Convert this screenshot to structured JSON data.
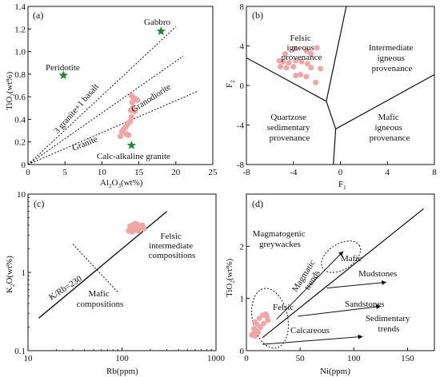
{
  "colors": {
    "point": "#f2a5a5",
    "star": "#1f8a3a",
    "ink": "#111111"
  },
  "chart_data": [
    {
      "panel": "(a)",
      "type": "scatter",
      "xlabel": "Al2O3 (wt%)",
      "ylabel": "TiO2 (wt%)",
      "xlim": [
        0,
        25
      ],
      "ylim": [
        0,
        1.4
      ],
      "xticks": [
        0,
        5,
        10,
        15,
        20,
        25
      ],
      "yticks": [
        0,
        0.2,
        0.4,
        0.6,
        0.8,
        1.0,
        1.2,
        1.4
      ],
      "reference_points": [
        {
          "label": "Peridotite",
          "x": 4.8,
          "y": 0.79
        },
        {
          "label": "Gabbro",
          "x": 18.0,
          "y": 1.18
        },
        {
          "label": "Calc-alkaline granite",
          "x": 14.0,
          "y": 0.17
        }
      ],
      "lines": [
        {
          "label": "3 granite+1 basalt",
          "x": [
            0,
            20
          ],
          "y": [
            0,
            1.22
          ]
        },
        {
          "label": "Granodiorite",
          "x": [
            0,
            21
          ],
          "y": [
            0,
            0.96
          ]
        },
        {
          "label": "Granite",
          "x": [
            0,
            23
          ],
          "y": [
            0,
            0.65
          ]
        }
      ],
      "points": [
        {
          "x": 14.0,
          "y": 0.61
        },
        {
          "x": 14.3,
          "y": 0.59
        },
        {
          "x": 14.6,
          "y": 0.58
        },
        {
          "x": 14.1,
          "y": 0.55
        },
        {
          "x": 14.8,
          "y": 0.57
        },
        {
          "x": 14.2,
          "y": 0.5
        },
        {
          "x": 13.9,
          "y": 0.48
        },
        {
          "x": 14.4,
          "y": 0.47
        },
        {
          "x": 14.0,
          "y": 0.42
        },
        {
          "x": 13.8,
          "y": 0.38
        },
        {
          "x": 13.5,
          "y": 0.36
        },
        {
          "x": 13.2,
          "y": 0.33
        },
        {
          "x": 12.9,
          "y": 0.31
        },
        {
          "x": 12.7,
          "y": 0.29
        },
        {
          "x": 13.3,
          "y": 0.27
        },
        {
          "x": 13.6,
          "y": 0.26
        },
        {
          "x": 12.5,
          "y": 0.25
        }
      ]
    },
    {
      "panel": "(b)",
      "type": "scatter",
      "xlabel": "F1",
      "ylabel": "F2",
      "xlim": [
        -8,
        8
      ],
      "ylim": [
        -8,
        8
      ],
      "xticks": [
        -8,
        -4,
        0,
        4,
        8
      ],
      "yticks": [
        -8,
        -4,
        0,
        4,
        8
      ],
      "fields": [
        "Felsic igneous provenance",
        "Intermediate igneous provenance",
        "Mafic igneous provenance",
        "Quartzose sedimentary provenance"
      ],
      "boundaries": [
        {
          "x": [
            -8,
            -1.2
          ],
          "y": [
            2.8,
            -1.6
          ]
        },
        {
          "x": [
            -1.2,
            0.5
          ],
          "y": [
            -1.6,
            8
          ]
        },
        {
          "x": [
            -1.2,
            -0.4
          ],
          "y": [
            -1.6,
            -4.4
          ]
        },
        {
          "x": [
            -0.4,
            8
          ],
          "y": [
            -4.4,
            1.1
          ]
        },
        {
          "x": [
            -0.4,
            -0.6
          ],
          "y": [
            -4.4,
            -8
          ]
        }
      ],
      "points": [
        {
          "x": -3.9,
          "y": 3.7
        },
        {
          "x": -2.9,
          "y": 3.5
        },
        {
          "x": -2.5,
          "y": 3.2
        },
        {
          "x": -2.0,
          "y": 3.8
        },
        {
          "x": -4.7,
          "y": 3.2
        },
        {
          "x": -5.2,
          "y": 2.5
        },
        {
          "x": -4.9,
          "y": 2.4
        },
        {
          "x": -4.4,
          "y": 2.3
        },
        {
          "x": -3.8,
          "y": 2.5
        },
        {
          "x": -3.3,
          "y": 2.4
        },
        {
          "x": -2.8,
          "y": 2.2
        },
        {
          "x": -5.1,
          "y": 1.9
        },
        {
          "x": -4.6,
          "y": 1.8
        },
        {
          "x": -4.0,
          "y": 1.9
        },
        {
          "x": -2.5,
          "y": 1.8
        },
        {
          "x": -1.7,
          "y": 1.7
        },
        {
          "x": -3.8,
          "y": 1.0
        },
        {
          "x": -2.9,
          "y": 0.9
        },
        {
          "x": -3.4,
          "y": 1.1
        },
        {
          "x": -2.1,
          "y": 0.3
        }
      ]
    },
    {
      "panel": "(c)",
      "type": "scatter",
      "scale": "log-log",
      "xlabel": "Rb (ppm)",
      "ylabel": "K2O (wt%)",
      "xlim": [
        10,
        1000
      ],
      "ylim": [
        0.1,
        10
      ],
      "xticks": [
        10,
        100,
        1000
      ],
      "yticks": [
        0.1,
        1,
        10
      ],
      "fields": [
        "Felsic intermediate compositions",
        "Mafic compositions"
      ],
      "lines": [
        {
          "label": "K/Rb=230",
          "x": [
            13,
            300
          ],
          "y": [
            0.26,
            6.0
          ]
        },
        {
          "label": "",
          "x": [
            30,
            90
          ],
          "y": [
            2.3,
            0.56
          ]
        }
      ],
      "points": [
        {
          "x": 118,
          "y": 3.4
        },
        {
          "x": 122,
          "y": 3.9
        },
        {
          "x": 125,
          "y": 3.6
        },
        {
          "x": 130,
          "y": 4.0
        },
        {
          "x": 135,
          "y": 3.7
        },
        {
          "x": 140,
          "y": 3.5
        },
        {
          "x": 145,
          "y": 4.1
        },
        {
          "x": 150,
          "y": 3.8
        },
        {
          "x": 155,
          "y": 3.9
        },
        {
          "x": 160,
          "y": 3.7
        },
        {
          "x": 165,
          "y": 4.0
        },
        {
          "x": 170,
          "y": 3.6
        },
        {
          "x": 128,
          "y": 3.3
        },
        {
          "x": 138,
          "y": 4.2
        },
        {
          "x": 148,
          "y": 3.4
        }
      ]
    },
    {
      "panel": "(d)",
      "type": "scatter",
      "xlabel": "Ni(ppm)",
      "ylabel": "TiO2 (wt%)",
      "xlim": [
        0,
        175
      ],
      "ylim": [
        0,
        3
      ],
      "xticks": [
        0,
        50,
        100,
        150
      ],
      "yticks": [
        0,
        1,
        2
      ],
      "fields": [
        "Magmatogenic greywackes",
        "Felsic",
        "Mafic",
        "Sedimentary trends"
      ],
      "trends": [
        {
          "label": "Magmatic trends",
          "x": [
            28,
            90
          ],
          "y": [
            0.6,
            1.9
          ]
        },
        {
          "label": "Mudstones",
          "x": [
            75,
            130
          ],
          "y": [
            1.2,
            1.31
          ]
        },
        {
          "label": "Sandstones",
          "x": [
            48,
            125
          ],
          "y": [
            0.66,
            0.85
          ]
        },
        {
          "label": "Calcareous",
          "x": [
            15,
            108
          ],
          "y": [
            0.12,
            0.27
          ]
        }
      ],
      "boundary_line": {
        "x": [
          15,
          165
        ],
        "y": [
          0.25,
          2.72
        ]
      },
      "points": [
        {
          "x": 8,
          "y": 0.55
        },
        {
          "x": 10,
          "y": 0.5
        },
        {
          "x": 12,
          "y": 0.62
        },
        {
          "x": 15,
          "y": 0.68
        },
        {
          "x": 18,
          "y": 0.7
        },
        {
          "x": 20,
          "y": 0.58
        },
        {
          "x": 7,
          "y": 0.42
        },
        {
          "x": 9,
          "y": 0.38
        },
        {
          "x": 11,
          "y": 0.35
        },
        {
          "x": 6,
          "y": 0.32
        },
        {
          "x": 13,
          "y": 0.45
        },
        {
          "x": 5,
          "y": 0.3
        },
        {
          "x": 16,
          "y": 0.52
        },
        {
          "x": 19,
          "y": 0.66
        },
        {
          "x": 8,
          "y": 0.28
        }
      ]
    }
  ],
  "text": {
    "a": {
      "label": "(a)",
      "ylabel_main": "TiO",
      "ylabel_sub": "2",
      "ylabel_unit": "(wt%)",
      "xlabel_main": "Al",
      "xlabel_sub1": "2",
      "xlabel_mid": "O",
      "xlabel_sub2": "3",
      "xlabel_unit": "(wt%)",
      "peridotite": "Peridotite",
      "gabbro": "Gabbro",
      "calc": "Calc-alkaline granite",
      "line1": "3 granite+1 basalt",
      "line2": "Granodiorite",
      "line3": "Granite",
      "xticks": [
        "0",
        "5",
        "10",
        "15",
        "20",
        "25"
      ],
      "yticks": [
        "0",
        "0.2",
        "0.4",
        "0.6",
        "0.8",
        "1.0",
        "1.2",
        "1.4"
      ]
    },
    "b": {
      "label": "(b)",
      "felsic1": "Felsic",
      "felsic2": "igneous",
      "felsic3": "provenance",
      "inter1": "Intermediate",
      "inter2": "igneous",
      "inter3": "provenance",
      "mafic1": "Mafic",
      "mafic2": "igneous",
      "mafic3": "provenance",
      "quartz1": "Quartzose",
      "quartz2": "sedimentary",
      "quartz3": "provenance",
      "xlabel_main": "F",
      "xlabel_sub": "1",
      "ylabel_main": "F",
      "ylabel_sub": "2",
      "xticks": [
        "-8",
        "-4",
        "0",
        "4",
        "8"
      ],
      "yticks": [
        "-8",
        "-4",
        "0",
        "4",
        "8"
      ]
    },
    "c": {
      "label": "(c)",
      "felsic1": "Felsic",
      "felsic2": "intermediate",
      "felsic3": "compositions",
      "mafic1": "Mafic",
      "mafic2": "compositions",
      "ratio": "K/Rb=230",
      "xlabel": "Rb(ppm)",
      "ylabel_main": "K",
      "ylabel_sub": "2",
      "ylabel_rest": "O(wt%)",
      "xticks": [
        "10",
        "100",
        "1000"
      ],
      "yticks": [
        "0.1",
        "1",
        "10"
      ]
    },
    "d": {
      "label": "(d)",
      "greywacke1": "Magmatogenic",
      "greywacke2": "greywackes",
      "magmatic1": "Magmatic",
      "magmatic2": "trends",
      "mafic": "Mafic",
      "felsic": "Felsic",
      "mudstones": "Mudstones",
      "sandstones": "Sandstones",
      "sedimentary1": "Sedimentary",
      "sedimentary2": "trends",
      "calcareous": "Calcareous",
      "xlabel": "Ni(ppm)",
      "ylabel_main": "TiO",
      "ylabel_sub": "2",
      "ylabel_rest": "(wt%)",
      "xticks": [
        "0",
        "50",
        "100",
        "150"
      ],
      "yticks": [
        "0",
        "1",
        "2"
      ]
    }
  }
}
